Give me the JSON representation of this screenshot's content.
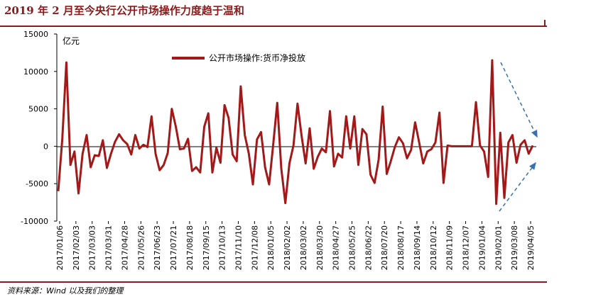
{
  "header": {
    "title": "2019 年 2 月至今央行公开市场操作力度趋于温和"
  },
  "footer": {
    "source": "资料来源：Wind 以及我们的整理"
  },
  "colors": {
    "brand": "#8b1a1a",
    "series": "#a31818",
    "arrow": "#3a6fb0"
  },
  "chart_data": {
    "type": "line",
    "title": "2019 年 2 月至今央行公开市场操作力度趋于温和",
    "unit_label": "亿元",
    "ylim": [
      -10000,
      15000
    ],
    "y_ticks": [
      15000,
      10000,
      5000,
      0,
      -5000,
      -10000
    ],
    "legend_position": "top-center",
    "grid": false,
    "x_tick_labels": [
      "2017/01/06",
      "2017/02/03",
      "2017/03/03",
      "2017/03/31",
      "2017/04/28",
      "2017/05/26",
      "2017/06/23",
      "2017/07/21",
      "2017/08/18",
      "2017/09/15",
      "2017/10/13",
      "2017/11/10",
      "2017/12/08",
      "2018/01/05",
      "2018/02/02",
      "2018/03/02",
      "2018/03/30",
      "2018/04/27",
      "2018/05/25",
      "2018/06/22",
      "2018/07/20",
      "2018/08/17",
      "2018/09/14",
      "2018/10/12",
      "2018/11/09",
      "2018/12/07",
      "2019/01/04",
      "2019/02/01",
      "2019/03/08",
      "2019/04/05"
    ],
    "series": [
      {
        "name": "公开市场操作:货币净投放",
        "values": [
          -6000,
          1000,
          11200,
          -2500,
          -700,
          -6300,
          -1000,
          1500,
          -2800,
          -1200,
          -1300,
          800,
          -2900,
          -1000,
          600,
          1600,
          800,
          300,
          -1100,
          1500,
          -300,
          200,
          -100,
          4000,
          -1000,
          -3200,
          -2500,
          -900,
          5000,
          2600,
          -400,
          -300,
          1000,
          -3300,
          -2800,
          -3500,
          2600,
          4400,
          -3500,
          -200,
          -2200,
          5500,
          3800,
          -1100,
          -2000,
          8000,
          1500,
          -1000,
          -5100,
          900,
          1900,
          -2800,
          -5100,
          200,
          5800,
          -3000,
          -7600,
          -2300,
          100,
          5700,
          1400,
          -2300,
          2400,
          -3000,
          -1400,
          -300,
          -800,
          4700,
          -2700,
          -1000,
          -1500,
          4000,
          -300,
          4000,
          -2500,
          2300,
          1600,
          -3800,
          -4900,
          -1800,
          5300,
          -3700,
          -2000,
          -100,
          1200,
          400,
          -1600,
          -500,
          3200,
          500,
          -2300,
          -700,
          -400,
          500,
          4500,
          -4900,
          100,
          0,
          0,
          0,
          0,
          0,
          0,
          5900,
          100,
          -700,
          -4100,
          11500,
          -7700,
          1800,
          -6900,
          500,
          1500,
          -2200,
          200,
          800,
          -1000,
          100
        ]
      }
    ]
  }
}
